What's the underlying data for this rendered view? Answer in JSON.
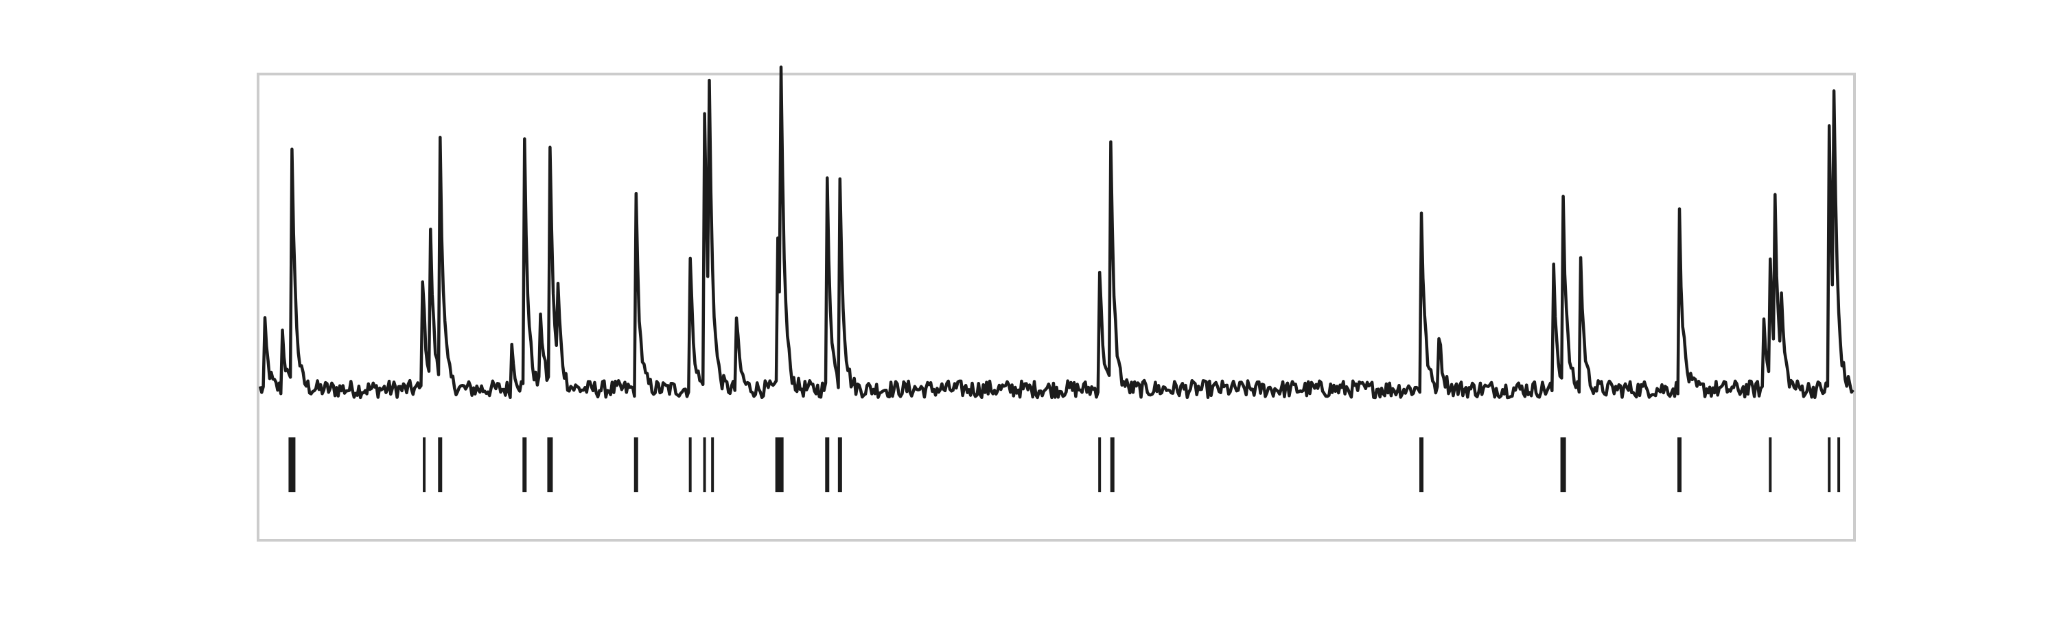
{
  "chart_data": {
    "type": "line",
    "title": "",
    "xlabel": "",
    "ylabel": "",
    "grid": false,
    "legend": "none",
    "x_range": [
      0,
      1000
    ],
    "y_range": [
      -0.15,
      1.05
    ],
    "colors": {
      "trace": "#1c1c1c",
      "events": "#1c1c1c",
      "frame": "#cccccc",
      "background": "#ffffff"
    },
    "baseline": 0.0,
    "noise_amplitude": 0.03,
    "series": [
      {
        "peaks": [
          {
            "x": 3,
            "amp": 0.22
          },
          {
            "x": 14,
            "amp": 0.2
          },
          {
            "x": 20,
            "amp": 0.85
          },
          {
            "x": 102,
            "amp": 0.4
          },
          {
            "x": 107,
            "amp": 0.5
          },
          {
            "x": 113,
            "amp": 0.85
          },
          {
            "x": 158,
            "amp": 0.15
          },
          {
            "x": 166,
            "amp": 0.86
          },
          {
            "x": 176,
            "amp": 0.27
          },
          {
            "x": 182,
            "amp": 0.84
          },
          {
            "x": 187,
            "amp": 0.28
          },
          {
            "x": 236,
            "amp": 0.66
          },
          {
            "x": 270,
            "amp": 0.45
          },
          {
            "x": 279,
            "amp": 0.98
          },
          {
            "x": 282,
            "amp": 0.82
          },
          {
            "x": 299,
            "amp": 0.25
          },
          {
            "x": 325,
            "amp": 0.52
          },
          {
            "x": 327,
            "amp": 0.94
          },
          {
            "x": 356,
            "amp": 0.73
          },
          {
            "x": 364,
            "amp": 0.73
          },
          {
            "x": 527,
            "amp": 0.42
          },
          {
            "x": 534,
            "amp": 0.84
          },
          {
            "x": 729,
            "amp": 0.63
          },
          {
            "x": 740,
            "amp": 0.2
          },
          {
            "x": 812,
            "amp": 0.41
          },
          {
            "x": 818,
            "amp": 0.65
          },
          {
            "x": 829,
            "amp": 0.45
          },
          {
            "x": 891,
            "amp": 0.61
          },
          {
            "x": 944,
            "amp": 0.24
          },
          {
            "x": 948,
            "amp": 0.44
          },
          {
            "x": 951,
            "amp": 0.53
          },
          {
            "x": 955,
            "amp": 0.22
          },
          {
            "x": 985,
            "amp": 0.92
          },
          {
            "x": 988,
            "amp": 0.8
          }
        ]
      }
    ],
    "events": [
      {
        "x": 20,
        "w": 5
      },
      {
        "x": 103,
        "w": 2
      },
      {
        "x": 113,
        "w": 3
      },
      {
        "x": 166,
        "w": 3
      },
      {
        "x": 182,
        "w": 4
      },
      {
        "x": 236,
        "w": 3
      },
      {
        "x": 270,
        "w": 2
      },
      {
        "x": 279,
        "w": 2
      },
      {
        "x": 284,
        "w": 2
      },
      {
        "x": 326,
        "w": 6
      },
      {
        "x": 356,
        "w": 3
      },
      {
        "x": 364,
        "w": 3
      },
      {
        "x": 527,
        "w": 2
      },
      {
        "x": 535,
        "w": 3
      },
      {
        "x": 729,
        "w": 3
      },
      {
        "x": 818,
        "w": 4
      },
      {
        "x": 891,
        "w": 3
      },
      {
        "x": 948,
        "w": 2
      },
      {
        "x": 985,
        "w": 2
      },
      {
        "x": 991,
        "w": 2
      }
    ]
  }
}
